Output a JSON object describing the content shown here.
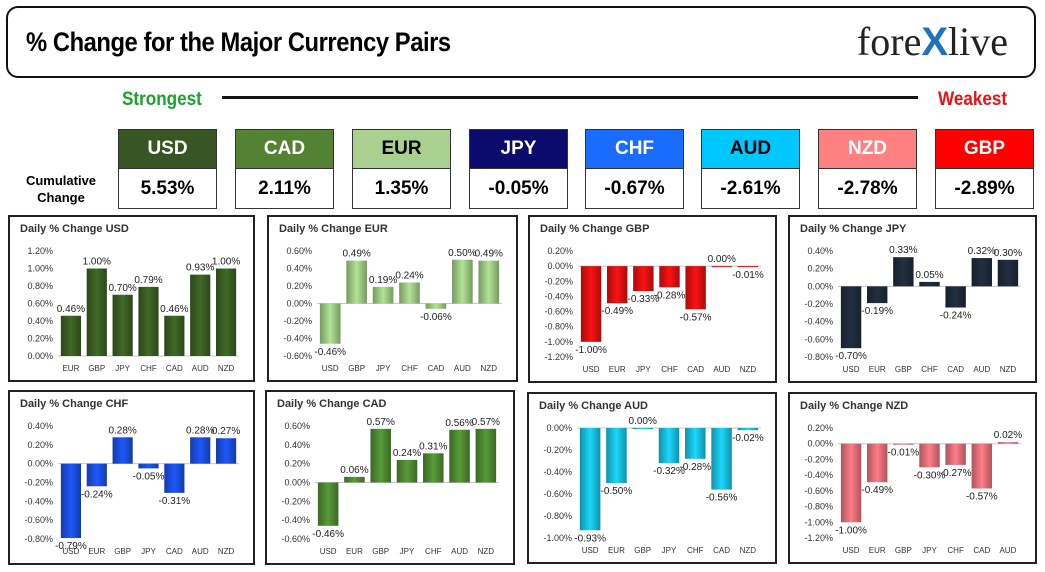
{
  "header": {
    "title": "% Change for the Major Currency Pairs",
    "logo_left": "fore",
    "logo_x": "X",
    "logo_right": "live"
  },
  "scale": {
    "strongest": "Strongest",
    "weakest": "Weakest"
  },
  "cumulative": {
    "label_line1": "Cumulative",
    "label_line2": "Change",
    "items": [
      {
        "ccy": "USD",
        "value": "5.53%",
        "bg": "#375623",
        "fg": "#ffffff"
      },
      {
        "ccy": "CAD",
        "value": "2.11%",
        "bg": "#548235",
        "fg": "#ffffff"
      },
      {
        "ccy": "EUR",
        "value": "1.35%",
        "bg": "#a9d08e",
        "fg": "#000000"
      },
      {
        "ccy": "JPY",
        "value": "-0.05%",
        "bg": "#0b0b6e",
        "fg": "#ffffff"
      },
      {
        "ccy": "CHF",
        "value": "-0.67%",
        "bg": "#1a6cff",
        "fg": "#ffffff"
      },
      {
        "ccy": "AUD",
        "value": "-2.61%",
        "bg": "#00c8ff",
        "fg": "#000000"
      },
      {
        "ccy": "NZD",
        "value": "-2.78%",
        "bg": "#ff8080",
        "fg": "#ffffff"
      },
      {
        "ccy": "GBP",
        "value": "-2.89%",
        "bg": "#ff0000",
        "fg": "#ffffff"
      }
    ]
  },
  "chart_data": [
    {
      "type": "bar",
      "title": "Daily % Change USD",
      "color": "#3a5e22",
      "categories": [
        "EUR",
        "GBP",
        "JPY",
        "CHF",
        "CAD",
        "AUD",
        "NZD"
      ],
      "values": [
        0.46,
        1.0,
        0.7,
        0.79,
        0.46,
        0.93,
        1.0
      ],
      "labels": [
        "0.46%",
        "1.00%",
        "0.70%",
        "0.79%",
        "0.46%",
        "0.93%",
        "1.00%"
      ],
      "ticks": [
        0.0,
        0.2,
        0.4,
        0.6,
        0.8,
        1.0,
        1.2
      ],
      "tick_labels": [
        "0.00%",
        "0.20%",
        "0.40%",
        "0.60%",
        "0.80%",
        "1.00%",
        "1.20%"
      ],
      "ylim": [
        0,
        1.2
      ]
    },
    {
      "type": "bar",
      "title": "Daily % Change EUR",
      "color": "#9fcc84",
      "categories": [
        "USD",
        "GBP",
        "JPY",
        "CHF",
        "CAD",
        "AUD",
        "NZD"
      ],
      "values": [
        -0.46,
        0.49,
        0.19,
        0.24,
        -0.06,
        0.5,
        0.49
      ],
      "labels": [
        "-0.46%",
        "0.49%",
        "0.19%",
        "0.24%",
        "-0.06%",
        "0.50%",
        "0.49%"
      ],
      "ticks": [
        -0.6,
        -0.4,
        -0.2,
        0.0,
        0.2,
        0.4,
        0.6
      ],
      "tick_labels": [
        "-0.60%",
        "-0.40%",
        "-0.20%",
        "0.00%",
        "0.20%",
        "0.40%",
        "0.60%"
      ],
      "ylim": [
        -0.6,
        0.6
      ]
    },
    {
      "type": "bar",
      "title": "Daily % Change GBP",
      "color": "#e01010",
      "categories": [
        "USD",
        "EUR",
        "JPY",
        "CHF",
        "CAD",
        "AUD",
        "NZD"
      ],
      "values": [
        -1.0,
        -0.49,
        -0.33,
        -0.28,
        -0.57,
        0.0,
        -0.01
      ],
      "labels": [
        "-1.00%",
        "-0.49%",
        "-0.33%",
        "-0.28%",
        "-0.57%",
        "0.00%",
        "-0.01%"
      ],
      "ticks": [
        -1.2,
        -1.0,
        -0.8,
        -0.6,
        -0.4,
        -0.2,
        0.0,
        0.2
      ],
      "tick_labels": [
        "-1.20%",
        "-1.00%",
        "-0.80%",
        "-0.60%",
        "-0.40%",
        "-0.20%",
        "0.00%",
        "0.20%"
      ],
      "ylim": [
        -1.2,
        0.2
      ]
    },
    {
      "type": "bar",
      "title": "Daily % Change JPY",
      "color": "#1e2a3a",
      "categories": [
        "USD",
        "EUR",
        "GBP",
        "CHF",
        "CAD",
        "AUD",
        "NZD"
      ],
      "values": [
        -0.7,
        -0.19,
        0.33,
        0.05,
        -0.24,
        0.32,
        0.3
      ],
      "labels": [
        "-0.70%",
        "-0.19%",
        "0.33%",
        "0.05%",
        "-0.24%",
        "0.32%",
        "0.30%"
      ],
      "ticks": [
        -0.8,
        -0.6,
        -0.4,
        -0.2,
        0.0,
        0.2,
        0.4
      ],
      "tick_labels": [
        "-0.80%",
        "-0.60%",
        "-0.40%",
        "-0.20%",
        "0.00%",
        "0.20%",
        "0.40%"
      ],
      "ylim": [
        -0.8,
        0.4
      ]
    },
    {
      "type": "bar",
      "title": "Daily % Change CHF",
      "color": "#1a4fe0",
      "categories": [
        "USD",
        "EUR",
        "GBP",
        "JPY",
        "CAD",
        "AUD",
        "NZD"
      ],
      "values": [
        -0.79,
        -0.24,
        0.28,
        -0.05,
        -0.31,
        0.28,
        0.27
      ],
      "labels": [
        "-0.79%",
        "-0.24%",
        "0.28%",
        "-0.05%",
        "-0.31%",
        "0.28%",
        "0.27%"
      ],
      "ticks": [
        -0.8,
        -0.6,
        -0.4,
        -0.2,
        0.0,
        0.2,
        0.4
      ],
      "tick_labels": [
        "-0.80%",
        "-0.60%",
        "-0.40%",
        "-0.20%",
        "0.00%",
        "0.20%",
        "0.40%"
      ],
      "ylim": [
        -0.8,
        0.4
      ]
    },
    {
      "type": "bar",
      "title": "Daily % Change CAD",
      "color": "#4f8a32",
      "categories": [
        "USD",
        "EUR",
        "GBP",
        "JPY",
        "CHF",
        "AUD",
        "NZD"
      ],
      "values": [
        -0.46,
        0.06,
        0.57,
        0.24,
        0.31,
        0.56,
        0.57
      ],
      "labels": [
        "-0.46%",
        "0.06%",
        "0.57%",
        "0.24%",
        "0.31%",
        "0.56%",
        "0.57%"
      ],
      "ticks": [
        -0.6,
        -0.4,
        -0.2,
        0.0,
        0.2,
        0.4,
        0.6
      ],
      "tick_labels": [
        "-0.60%",
        "-0.40%",
        "-0.20%",
        "0.00%",
        "0.20%",
        "0.40%",
        "0.60%"
      ],
      "ylim": [
        -0.6,
        0.6
      ]
    },
    {
      "type": "bar",
      "title": "Daily % Change AUD",
      "color": "#18c0e0",
      "categories": [
        "USD",
        "EUR",
        "GBP",
        "JPY",
        "CHF",
        "CAD",
        "NZD"
      ],
      "values": [
        -0.93,
        -0.5,
        0.0,
        -0.32,
        -0.28,
        -0.56,
        -0.02
      ],
      "labels": [
        "-0.93%",
        "-0.50%",
        "0.00%",
        "-0.32%",
        "-0.28%",
        "-0.56%",
        "-0.02%"
      ],
      "ticks": [
        -1.0,
        -0.8,
        -0.6,
        -0.4,
        -0.2,
        0.0
      ],
      "tick_labels": [
        "-1.00%",
        "-0.80%",
        "-0.60%",
        "-0.40%",
        "-0.20%",
        "0.00%"
      ],
      "ylim": [
        -1.0,
        0.0
      ]
    },
    {
      "type": "bar",
      "title": "Daily % Change NZD",
      "color": "#e8707a",
      "categories": [
        "USD",
        "EUR",
        "GBP",
        "JPY",
        "CHF",
        "CAD",
        "AUD"
      ],
      "values": [
        -1.0,
        -0.49,
        -0.01,
        -0.3,
        -0.27,
        -0.57,
        0.02
      ],
      "labels": [
        "-1.00%",
        "-0.49%",
        "-0.01%",
        "-0.30%",
        "-0.27%",
        "-0.57%",
        "0.02%"
      ],
      "ticks": [
        -1.2,
        -1.0,
        -0.8,
        -0.6,
        -0.4,
        -0.2,
        0.0,
        0.2
      ],
      "tick_labels": [
        "-1.20%",
        "-1.00%",
        "-0.80%",
        "-0.60%",
        "-0.40%",
        "-0.20%",
        "0.00%",
        "0.20%"
      ],
      "ylim": [
        -1.2,
        0.2
      ]
    }
  ]
}
